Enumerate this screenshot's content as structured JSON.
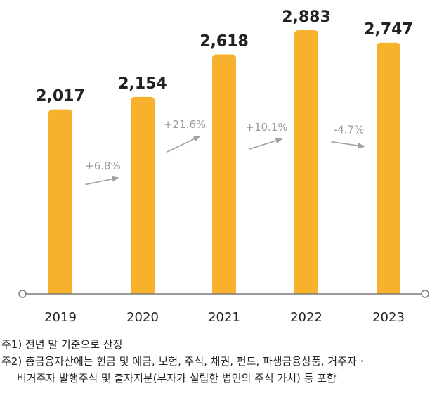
{
  "chart_data": {
    "type": "bar",
    "categories": [
      "2019",
      "2020",
      "2021",
      "2022",
      "2023"
    ],
    "values": [
      2017,
      2154,
      2618,
      2883,
      2747
    ],
    "value_labels": [
      "2,017",
      "2,154",
      "2,618",
      "2,883",
      "2,747"
    ],
    "changes": [
      "+6.8%",
      "+21.6%",
      "+10.1%",
      "-4.7%"
    ],
    "ylim": [
      0,
      2883
    ],
    "bar_color": "#F8B12C",
    "axis_color": "#7a7a7a",
    "arrow_color": "#a0a0a0",
    "grid": false
  },
  "footnotes": [
    "주1) 전년 말 기준으로 산정",
    "주2) 총금융자산에는 현금 및 예금, 보험, 주식, 채권, 펀드, 파생금융상품, 거주자 ·",
    "비거주자 발행주식 및 출자지분(부자가 설립한 법인의 주식 가치) 등 포함"
  ]
}
